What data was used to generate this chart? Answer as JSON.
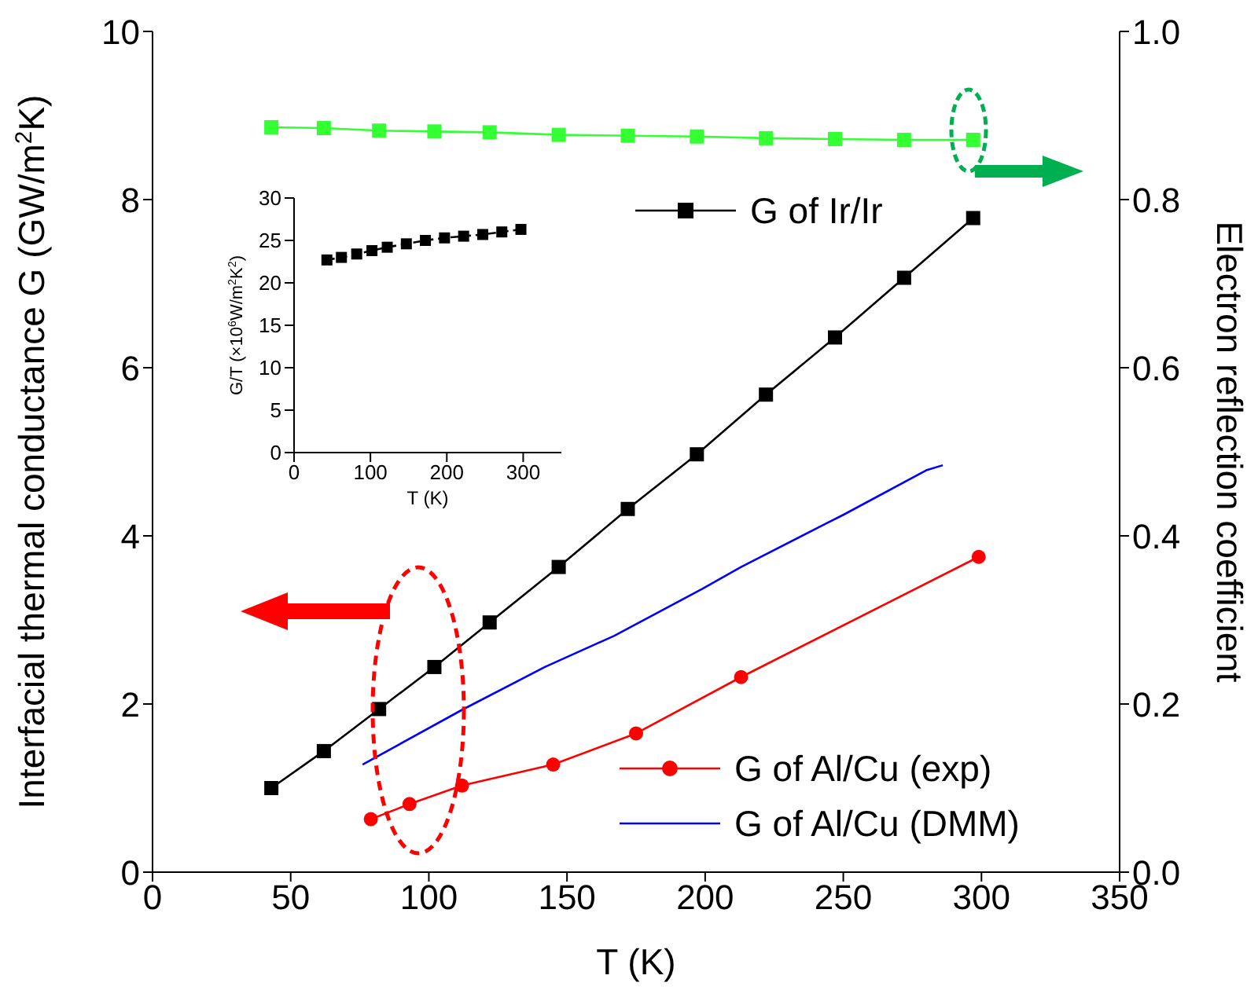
{
  "chart_data": [
    {
      "type": "line",
      "xlabel": "T (K)",
      "ylabel": "Interfacial thermal conductance G (GW/m$^{2}$K)",
      "y2label": "Electron reflection coefficient",
      "xlim": [
        0,
        350
      ],
      "xticks": [
        0,
        50,
        100,
        150,
        200,
        250,
        300,
        350
      ],
      "ylim": [
        0,
        10
      ],
      "yticks": [
        0,
        2,
        4,
        6,
        8,
        10
      ],
      "y2lim": [
        0,
        1
      ],
      "y2ticks": [
        {
          "value": 0,
          "label": "0.0"
        },
        0.2,
        0.4,
        0.6,
        0.8,
        {
          "value": 1,
          "label": "1.0"
        }
      ],
      "legend": "bottom right",
      "series": [
        {
          "name": "G of Ir/Ir",
          "color": "#000000",
          "marker": "square",
          "x": [
            43,
            62,
            82,
            102,
            122,
            147,
            172,
            197,
            222,
            247,
            272,
            297
          ],
          "values": [
            1.0,
            1.44,
            1.94,
            2.44,
            2.97,
            3.63,
            4.32,
            4.97,
            5.68,
            6.36,
            7.07,
            7.78
          ]
        },
        {
          "name": "G of Al/Cu (exp)",
          "color": "#ff0000",
          "marker": "circle",
          "x": [
            79,
            93,
            112,
            145,
            175,
            213,
            299
          ],
          "values": [
            0.63,
            0.81,
            1.03,
            1.28,
            1.65,
            2.32,
            3.75
          ]
        },
        {
          "name": "G of Al/Cu (DMM)",
          "color": "#0000ff",
          "marker": "none",
          "x": [
            76,
            112,
            142,
            167,
            199,
            213,
            244,
            250,
            280,
            286
          ],
          "values": [
            1.28,
            1.93,
            2.44,
            2.81,
            3.37,
            3.63,
            4.15,
            4.25,
            4.78,
            4.84
          ]
        },
        {
          "color": "#33ff33",
          "marker": "square",
          "axis": "y2",
          "x": [
            43,
            62,
            82,
            102,
            122,
            147,
            172,
            197,
            222,
            247,
            272,
            297
          ],
          "values": [
            0.886,
            0.885,
            0.882,
            0.881,
            0.88,
            0.877,
            0.876,
            0.875,
            0.873,
            0.872,
            0.871,
            0.871
          ]
        }
      ]
    },
    {
      "type": "line",
      "xlabel": "T (K)",
      "ylabel": "G/T (×10$^{6}$W/m$^{2}$K$^{2}$)",
      "xlim": [
        0,
        350
      ],
      "xticks": [
        0,
        100,
        200,
        300
      ],
      "ylim": [
        0,
        30
      ],
      "yticks": [
        0,
        5,
        10,
        15,
        20,
        25,
        30
      ],
      "marker": "square",
      "line_style": "dashed",
      "series": [
        {
          "color": "#000000",
          "x": [
            43,
            62,
            82,
            102,
            122,
            147,
            172,
            197,
            222,
            247,
            272,
            297
          ],
          "values": [
            22.7,
            23.0,
            23.4,
            23.8,
            24.2,
            24.6,
            25.0,
            25.3,
            25.5,
            25.7,
            26.0,
            26.3
          ]
        }
      ]
    }
  ]
}
